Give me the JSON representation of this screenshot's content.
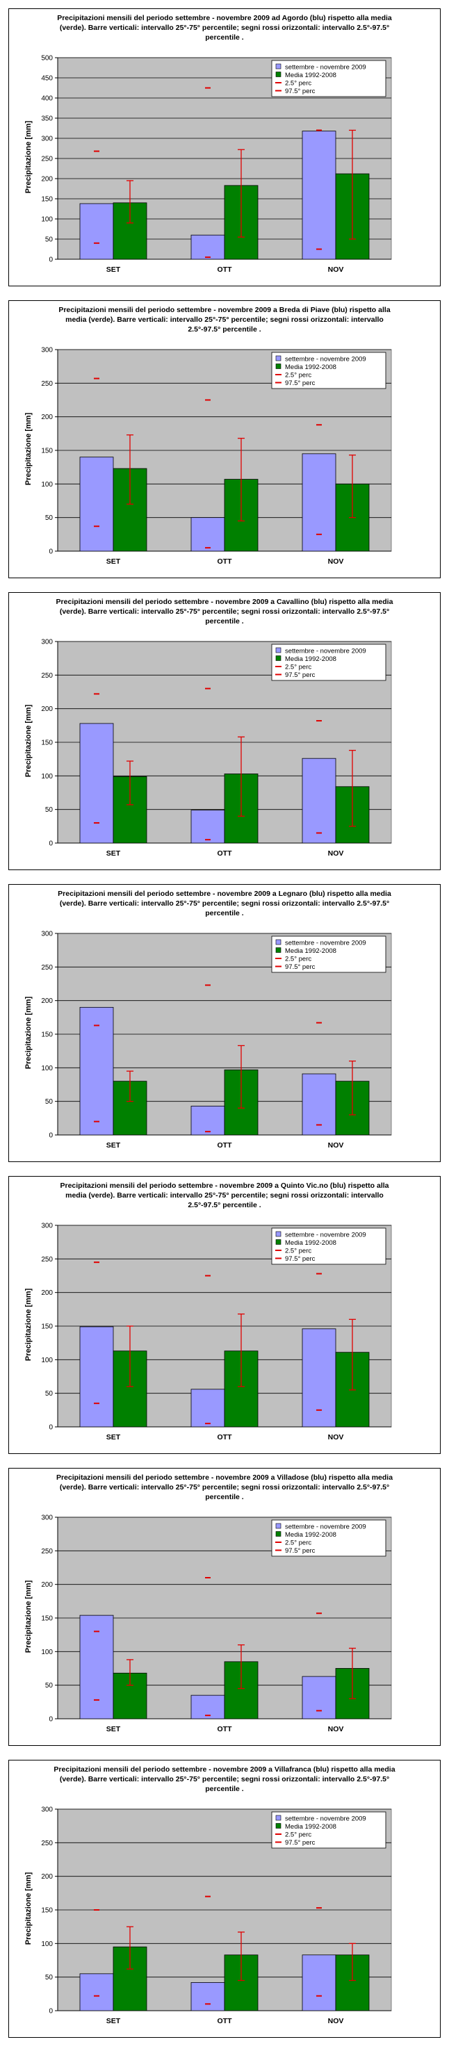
{
  "colors": {
    "plot_bg": "#c0c0c0",
    "series_obs": "#9999ff",
    "series_mean": "#008000",
    "error": "#e00000"
  },
  "chart_data": [
    {
      "type": "bar",
      "title": "Precipitazioni mensili del periodo settembre - novembre 2009 ad Agordo (blu) rispetto alla media (verde). Barre verticali: intervallo 25°-75° percentile; segni rossi orizzontali: intervallo 2.5°-97.5° percentile .",
      "xlabel": "",
      "ylabel": "Precipitazione [mm]",
      "ylim": [
        0,
        500
      ],
      "yticks": [
        0,
        50,
        100,
        150,
        200,
        250,
        300,
        350,
        400,
        450,
        500
      ],
      "grid": true,
      "legend_position": "top-right",
      "categories": [
        "SET",
        "OTT",
        "NOV"
      ],
      "series": [
        {
          "name": "settembre - novembre 2009",
          "values": [
            138,
            60,
            318
          ]
        },
        {
          "name": "Media 1992-2008",
          "values": [
            140,
            183,
            212
          ]
        }
      ],
      "p25": [
        90,
        55,
        50
      ],
      "p75": [
        195,
        272,
        320
      ],
      "p2_5": [
        40,
        5,
        25
      ],
      "p97_5": [
        268,
        425,
        320
      ],
      "legend_extra": [
        "2.5° perc",
        "97.5° perc"
      ]
    },
    {
      "type": "bar",
      "title": "Precipitazioni mensili del periodo settembre - novembre 2009 a Breda di Piave (blu) rispetto alla media (verde). Barre verticali: intervallo 25°-75° percentile; segni rossi orizzontali: intervallo 2.5°-97.5° percentile .",
      "xlabel": "",
      "ylabel": "Precipitazione [mm]",
      "ylim": [
        0,
        300
      ],
      "yticks": [
        0,
        50,
        100,
        150,
        200,
        250,
        300
      ],
      "grid": true,
      "legend_position": "top-right",
      "categories": [
        "SET",
        "OTT",
        "NOV"
      ],
      "series": [
        {
          "name": "settembre - novembre 2009",
          "values": [
            140,
            50,
            145
          ]
        },
        {
          "name": "Media 1992-2008",
          "values": [
            123,
            107,
            100
          ]
        }
      ],
      "p25": [
        70,
        45,
        50
      ],
      "p75": [
        173,
        168,
        143
      ],
      "p2_5": [
        37,
        5,
        25
      ],
      "p97_5": [
        257,
        225,
        188
      ],
      "legend_extra": [
        "2.5° perc",
        "97.5° perc"
      ]
    },
    {
      "type": "bar",
      "title": "Precipitazioni mensili del periodo settembre - novembre 2009 a Cavallino (blu) rispetto alla media (verde). Barre verticali: intervallo 25°-75° percentile; segni rossi orizzontali: intervallo 2.5°-97.5° percentile .",
      "xlabel": "",
      "ylabel": "Precipitazione [mm]",
      "ylim": [
        0,
        300
      ],
      "yticks": [
        0,
        50,
        100,
        150,
        200,
        250,
        300
      ],
      "grid": true,
      "legend_position": "top-right",
      "categories": [
        "SET",
        "OTT",
        "NOV"
      ],
      "series": [
        {
          "name": "settembre - novembre 2009",
          "values": [
            178,
            49,
            126
          ]
        },
        {
          "name": "Media 1992-2008",
          "values": [
            99,
            103,
            84
          ]
        }
      ],
      "p25": [
        57,
        40,
        25
      ],
      "p75": [
        122,
        158,
        138
      ],
      "p2_5": [
        30,
        5,
        15
      ],
      "p97_5": [
        222,
        230,
        182
      ],
      "legend_extra": [
        "2.5° perc",
        "97.5° perc"
      ]
    },
    {
      "type": "bar",
      "title": "Precipitazioni mensili del periodo settembre - novembre 2009 a Legnaro (blu) rispetto alla media (verde). Barre verticali: intervallo 25°-75° percentile; segni rossi orizzontali: intervallo 2.5°-97.5° percentile .",
      "xlabel": "",
      "ylabel": "Precipitazione [mm]",
      "ylim": [
        0,
        300
      ],
      "yticks": [
        0,
        50,
        100,
        150,
        200,
        250,
        300
      ],
      "grid": true,
      "legend_position": "top-right",
      "categories": [
        "SET",
        "OTT",
        "NOV"
      ],
      "series": [
        {
          "name": "settembre - novembre 2009",
          "values": [
            190,
            43,
            91
          ]
        },
        {
          "name": "Media 1992-2008",
          "values": [
            80,
            97,
            80
          ]
        }
      ],
      "p25": [
        50,
        40,
        30
      ],
      "p75": [
        95,
        133,
        110
      ],
      "p2_5": [
        20,
        5,
        15
      ],
      "p97_5": [
        163,
        223,
        167
      ],
      "legend_extra": [
        "2.5° perc",
        "97.5° perc"
      ]
    },
    {
      "type": "bar",
      "title": "Precipitazioni mensili del periodo settembre - novembre 2009 a Quinto Vic.no (blu) rispetto alla media (verde). Barre verticali: intervallo 25°-75° percentile; segni rossi orizzontali: intervallo 2.5°-97.5° percentile .",
      "xlabel": "",
      "ylabel": "Precipitazione [mm]",
      "ylim": [
        0,
        300
      ],
      "yticks": [
        0,
        50,
        100,
        150,
        200,
        250,
        300
      ],
      "grid": true,
      "legend_position": "top-right",
      "categories": [
        "SET",
        "OTT",
        "NOV"
      ],
      "series": [
        {
          "name": "settembre - novembre 2009",
          "values": [
            149,
            56,
            146
          ]
        },
        {
          "name": "Media 1992-2008",
          "values": [
            113,
            113,
            111
          ]
        }
      ],
      "p25": [
        60,
        60,
        55
      ],
      "p75": [
        150,
        168,
        160
      ],
      "p2_5": [
        35,
        5,
        25
      ],
      "p97_5": [
        245,
        225,
        228
      ],
      "legend_extra": [
        "2.5° perc",
        "97.5° perc"
      ]
    },
    {
      "type": "bar",
      "title": "Precipitazioni mensili del periodo settembre - novembre 2009 a Villadose (blu) rispetto alla media (verde). Barre verticali: intervallo 25°-75° percentile; segni rossi orizzontali: intervallo 2.5°-97.5° percentile .",
      "xlabel": "",
      "ylabel": "Precipitazione [mm]",
      "ylim": [
        0,
        300
      ],
      "yticks": [
        0,
        50,
        100,
        150,
        200,
        250,
        300
      ],
      "grid": true,
      "legend_position": "top-right",
      "categories": [
        "SET",
        "OTT",
        "NOV"
      ],
      "series": [
        {
          "name": "settembre - novembre 2009",
          "values": [
            154,
            35,
            63
          ]
        },
        {
          "name": "Media 1992-2008",
          "values": [
            68,
            85,
            75
          ]
        }
      ],
      "p25": [
        50,
        45,
        30
      ],
      "p75": [
        88,
        110,
        105
      ],
      "p2_5": [
        28,
        5,
        12
      ],
      "p97_5": [
        130,
        210,
        157
      ],
      "legend_extra": [
        "2.5° perc",
        "97.5° perc"
      ]
    },
    {
      "type": "bar",
      "title": "Precipitazioni mensili del periodo settembre - novembre 2009 a Villafranca (blu) rispetto alla media (verde). Barre verticali: intervallo 25°-75° percentile; segni rossi orizzontali: intervallo 2.5°-97.5° percentile .",
      "xlabel": "",
      "ylabel": "Precipitazione [mm]",
      "ylim": [
        0,
        300
      ],
      "yticks": [
        0,
        50,
        100,
        150,
        200,
        250,
        300
      ],
      "grid": true,
      "legend_position": "top-right",
      "categories": [
        "SET",
        "OTT",
        "NOV"
      ],
      "series": [
        {
          "name": "settembre - novembre 2009",
          "values": [
            55,
            42,
            83
          ]
        },
        {
          "name": "Media 1992-2008",
          "values": [
            95,
            83,
            83
          ]
        }
      ],
      "p25": [
        62,
        45,
        45
      ],
      "p75": [
        125,
        117,
        100
      ],
      "p2_5": [
        22,
        10,
        22
      ],
      "p97_5": [
        150,
        170,
        153
      ],
      "legend_extra": [
        "2.5° perc",
        "97.5° perc"
      ]
    }
  ]
}
